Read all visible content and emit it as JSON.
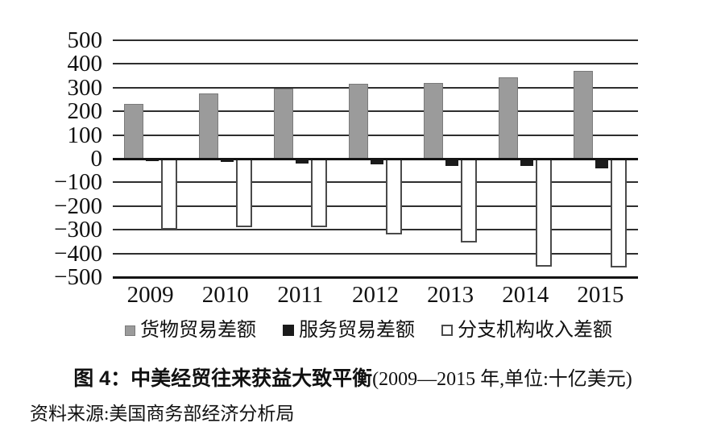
{
  "page": {
    "background": "#ffffff"
  },
  "chart_data": {
    "type": "bar",
    "title": "中美经贸往来获益大致平衡",
    "categories": [
      "2009",
      "2010",
      "2011",
      "2012",
      "2013",
      "2014",
      "2015"
    ],
    "series": [
      {
        "key": "goods-trade-balance",
        "name": "货物贸易差额",
        "color": "#9b9b9b",
        "border_color": "#7a7a7a",
        "values": [
          230,
          275,
          295,
          315,
          320,
          345,
          370
        ]
      },
      {
        "key": "services-trade-balance",
        "name": "服务贸易差额",
        "color": "#1b1b1b",
        "border_color": "#1b1b1b",
        "values": [
          -10,
          -15,
          -20,
          -25,
          -30,
          -30,
          -40
        ]
      },
      {
        "key": "affiliate-income-balance",
        "name": "分支机构收入差额",
        "color": "#ffffff",
        "border_color": "#4a4a4a",
        "values": [
          -300,
          -290,
          -290,
          -320,
          -355,
          -455,
          -460
        ]
      }
    ],
    "ylim": [
      -500,
      500
    ],
    "ytick_step": 100,
    "ytick_labels": [
      "500",
      "400",
      "300",
      "200",
      "100",
      "0",
      "−100",
      "−200",
      "−300",
      "−400",
      "−500"
    ],
    "grid": true,
    "legend_position": "bottom",
    "axis_color": "#2e2e2e"
  },
  "caption": {
    "prefix": "图 4：",
    "title": "中美经贸往来获益大致平衡",
    "subtitle": "(2009—2015 年,单位:十亿美元)"
  },
  "source_line": "资料来源:美国商务部经济分析局"
}
